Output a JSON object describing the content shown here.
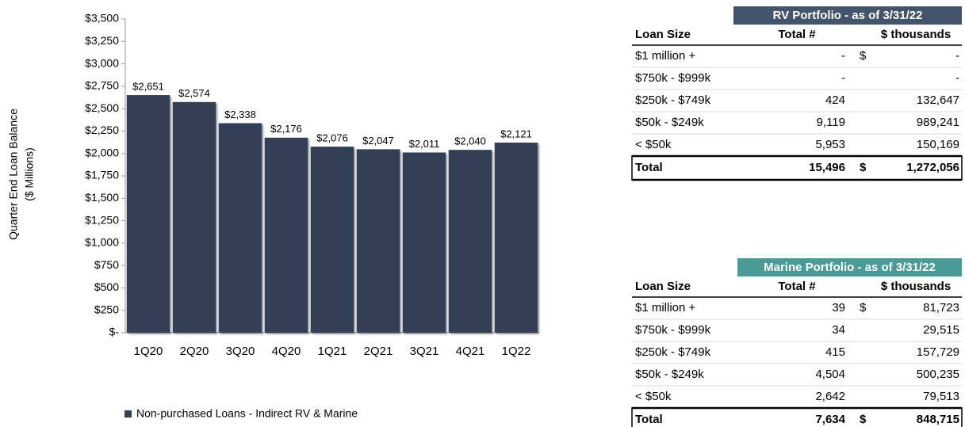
{
  "chart_data": {
    "type": "bar",
    "ylabel": [
      "Quarter End Loan Balance",
      "($ Millions)"
    ],
    "categories": [
      "1Q20",
      "2Q20",
      "3Q20",
      "4Q20",
      "1Q21",
      "2Q21",
      "3Q21",
      "4Q21",
      "1Q22"
    ],
    "series": [
      {
        "name": "Non-purchased Loans - Indirect RV & Marine",
        "color": "#333f55",
        "values": [
          2651,
          2574,
          2338,
          2176,
          2076,
          2047,
          2011,
          2040,
          2121
        ],
        "value_labels": [
          "$2,651",
          "$2,574",
          "$2,338",
          "$2,176",
          "$2,076",
          "$2,047",
          "$2,011",
          "$2,040",
          "$2,121"
        ]
      }
    ],
    "ylim": [
      0,
      3500
    ],
    "yticks": [
      {
        "value": 0,
        "label": "$-"
      },
      {
        "value": 250,
        "label": "$250"
      },
      {
        "value": 500,
        "label": "$500"
      },
      {
        "value": 750,
        "label": "$750"
      },
      {
        "value": 1000,
        "label": "$1,000"
      },
      {
        "value": 1250,
        "label": "$1,250"
      },
      {
        "value": 1500,
        "label": "$1,500"
      },
      {
        "value": 1750,
        "label": "$1,750"
      },
      {
        "value": 2000,
        "label": "$2,000"
      },
      {
        "value": 2250,
        "label": "$2,250"
      },
      {
        "value": 2500,
        "label": "$2,500"
      },
      {
        "value": 2750,
        "label": "$2,750"
      },
      {
        "value": 3000,
        "label": "$3,000"
      },
      {
        "value": 3250,
        "label": "$3,250"
      },
      {
        "value": 3500,
        "label": "$3,500"
      }
    ],
    "grid": false,
    "legend": "bottom"
  },
  "rv": {
    "title": "RV Portfolio - as of 3/31/22",
    "color": "#44546a",
    "header": [
      "Loan Size",
      "Total #",
      "$ thousands"
    ],
    "rows": [
      [
        "$1 million +",
        "-",
        "$",
        "-"
      ],
      [
        "$750k - $999k",
        "-",
        null,
        "-"
      ],
      [
        "$250k - $749k",
        "424",
        null,
        "132,647"
      ],
      [
        "$50k - $249k",
        "9,119",
        null,
        "989,241"
      ],
      [
        "< $50k",
        "5,953",
        null,
        "150,169"
      ]
    ],
    "total": [
      "Total",
      "15,496",
      "$",
      "1,272,056"
    ]
  },
  "marine": {
    "title": "Marine Portfolio - as of 3/31/22",
    "color": "#4a9a96",
    "header": [
      "Loan Size",
      "Total #",
      "$ thousands"
    ],
    "rows": [
      [
        "$1 million +",
        "39",
        "$",
        "81,723"
      ],
      [
        "$750k - $999k",
        "34",
        null,
        "29,515"
      ],
      [
        "$250k - $749k",
        "415",
        null,
        "157,729"
      ],
      [
        "$50k - $249k",
        "4,504",
        null,
        "500,235"
      ],
      [
        "< $50k",
        "2,642",
        null,
        "79,513"
      ]
    ],
    "total": [
      "Total",
      "7,634",
      "$",
      "848,715"
    ]
  }
}
